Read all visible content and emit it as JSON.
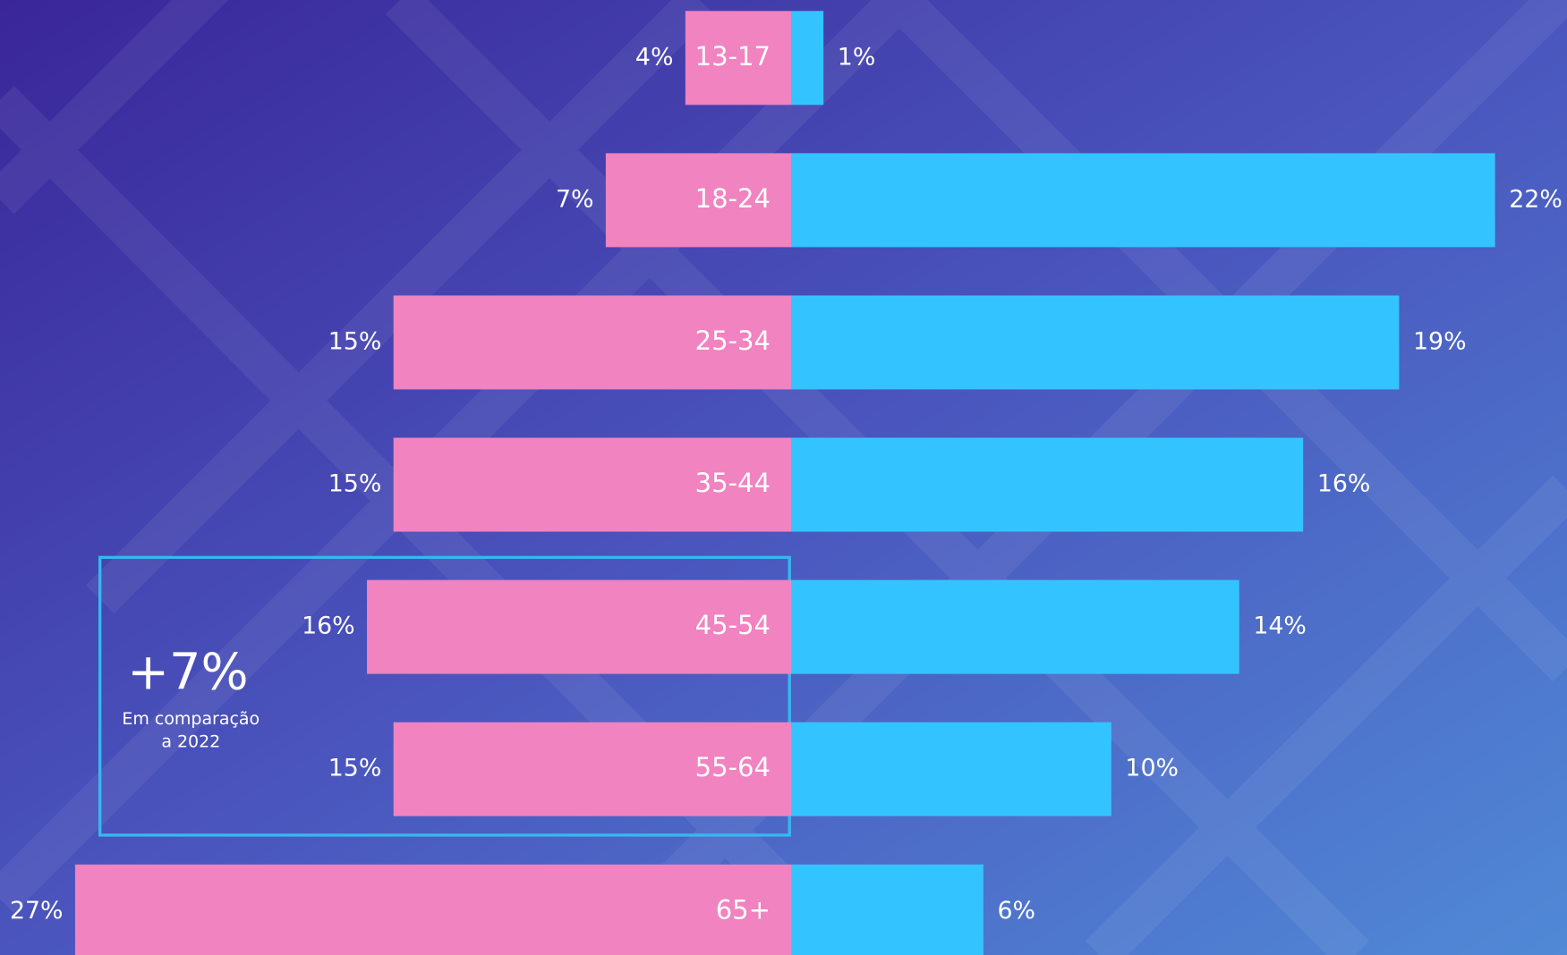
{
  "chart_data": {
    "type": "butterfly",
    "categories": [
      "13-17",
      "18-24",
      "25-34",
      "35-44",
      "45-54",
      "55-64",
      "65+"
    ],
    "series": [
      {
        "color": "#f083c0",
        "values": [
          4,
          7,
          15,
          15,
          16,
          15,
          27
        ],
        "value_labels": [
          "4%",
          "7%",
          "15%",
          "15%",
          "16%",
          "15%",
          "27%"
        ]
      },
      {
        "color": "#33c4ff",
        "values": [
          1,
          22,
          19,
          16,
          14,
          10,
          6
        ],
        "value_labels": [
          "1%",
          "22%",
          "19%",
          "16%",
          "14%",
          "10%",
          "6%"
        ]
      }
    ],
    "annotation": {
      "headline": "+7%",
      "text": [
        "Em comparação",
        "a 2022"
      ],
      "color": "#35b8f0"
    }
  }
}
